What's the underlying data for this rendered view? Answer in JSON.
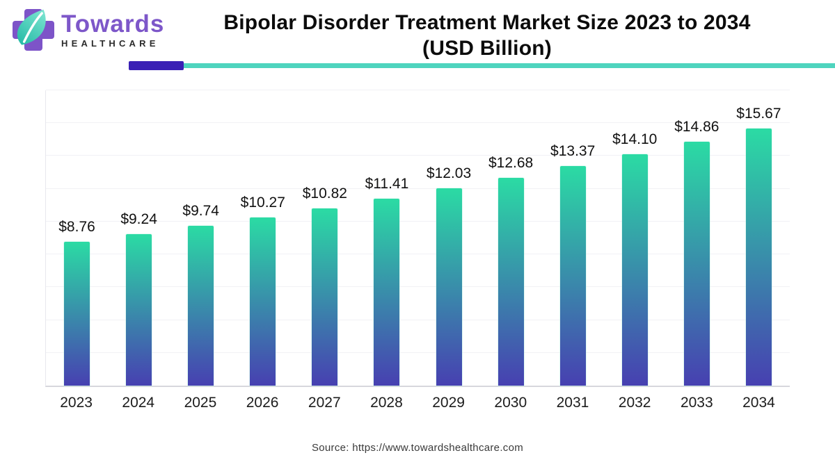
{
  "logo": {
    "name": "Towards",
    "subname": "HEALTHCARE",
    "cross_color": "#7d54c8",
    "leaf_color_light": "#7fe6d2",
    "leaf_color_dark": "#23b9a5"
  },
  "header": {
    "title_line1": "Bipolar Disorder Treatment Market Size 2023 to 2034",
    "title_line2": "(USD Billion)",
    "underline_accent_color": "#3a20b5",
    "underline_line_color": "#4fd4be"
  },
  "chart_data": {
    "type": "bar",
    "title": "Bipolar Disorder Treatment Market Size 2023 to 2034 (USD Billion)",
    "categories": [
      "2023",
      "2024",
      "2025",
      "2026",
      "2027",
      "2028",
      "2029",
      "2030",
      "2031",
      "2032",
      "2033",
      "2034"
    ],
    "values": [
      8.76,
      9.24,
      9.74,
      10.27,
      10.82,
      11.41,
      12.03,
      12.68,
      13.37,
      14.1,
      14.86,
      15.67
    ],
    "value_labels": [
      "$8.76",
      "$9.24",
      "$9.74",
      "$10.27",
      "$10.82",
      "$11.41",
      "$12.03",
      "$12.68",
      "$13.37",
      "$14.10",
      "$14.86",
      "$15.67"
    ],
    "unit": "USD Billion",
    "xlabel": "",
    "ylabel": "",
    "ylim": [
      0,
      18
    ],
    "grid_step": 2,
    "grid": "on",
    "legend": "none",
    "bar_color_top": "#2bdba4",
    "bar_color_bottom": "#4740b1"
  },
  "footer": {
    "source": "Source: https://www.towardshealthcare.com"
  }
}
